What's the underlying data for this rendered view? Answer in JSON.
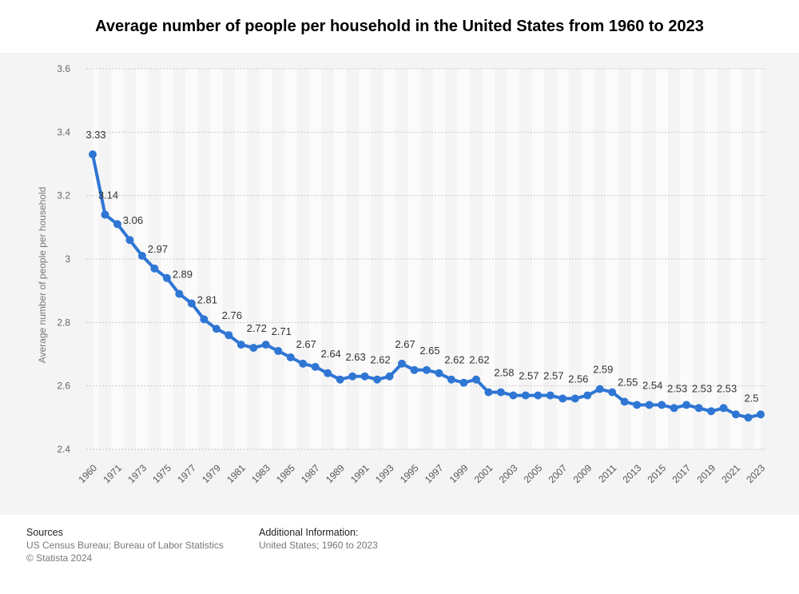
{
  "title": "Average number of people per household in the United States from 1960 to 2023",
  "sources": {
    "heading": "Sources",
    "line1": "US Census Bureau; Bureau of Labor Statistics",
    "line2": "© Statista 2024"
  },
  "additional_info": {
    "heading": "Additional Information:",
    "line1": "United States; 1960 to 2023"
  },
  "colors": {
    "line": "#2f76d4",
    "grid": "#c8c8c8",
    "panel": "#f4f4f4"
  },
  "chart_data": {
    "type": "line",
    "title": "Average number of people per household in the United States from 1960 to 2023",
    "xlabel": "",
    "ylabel": "Average number of people per household",
    "ylim": [
      2.4,
      3.6
    ],
    "yticks": [
      2.4,
      2.6,
      2.8,
      3,
      3.2,
      3.4,
      3.6
    ],
    "grid": true,
    "x": [
      "1960",
      "1970",
      "1971",
      "1972",
      "1973",
      "1974",
      "1975",
      "1976",
      "1977",
      "1978",
      "1979",
      "1980",
      "1981",
      "1982",
      "1983",
      "1984",
      "1985",
      "1986",
      "1987",
      "1988",
      "1989",
      "1990",
      "1991",
      "1992",
      "1993",
      "1994",
      "1995",
      "1996",
      "1997",
      "1998",
      "1999",
      "2000",
      "2001",
      "2002",
      "2003",
      "2004",
      "2005",
      "2006",
      "2007",
      "2008",
      "2009",
      "2010",
      "2011",
      "2012",
      "2013",
      "2014",
      "2015",
      "2016",
      "2017",
      "2018",
      "2019",
      "2020",
      "2021",
      "2022",
      "2023"
    ],
    "x_tick_labels": [
      "1960",
      "1971",
      "1973",
      "1975",
      "1977",
      "1979",
      "1981",
      "1983",
      "1985",
      "1987",
      "1989",
      "1991",
      "1993",
      "1995",
      "1997",
      "1999",
      "2001",
      "2003",
      "2005",
      "2007",
      "2009",
      "2011",
      "2013",
      "2015",
      "2017",
      "2019",
      "2021",
      "2023"
    ],
    "series": [
      {
        "values": [
          3.33,
          3.14,
          3.11,
          3.06,
          3.01,
          2.97,
          2.94,
          2.89,
          2.86,
          2.81,
          2.78,
          2.76,
          2.73,
          2.72,
          2.73,
          2.71,
          2.69,
          2.67,
          2.66,
          2.64,
          2.62,
          2.63,
          2.63,
          2.62,
          2.63,
          2.67,
          2.65,
          2.65,
          2.64,
          2.62,
          2.61,
          2.62,
          2.58,
          2.58,
          2.57,
          2.57,
          2.57,
          2.57,
          2.56,
          2.56,
          2.57,
          2.59,
          2.58,
          2.55,
          2.54,
          2.54,
          2.54,
          2.53,
          2.54,
          2.53,
          2.52,
          2.53,
          2.51,
          2.5,
          2.51
        ]
      }
    ],
    "data_labels": [
      {
        "x": "1960",
        "text": "3.33"
      },
      {
        "x": "1970",
        "text": "3.14"
      },
      {
        "x": "1972",
        "text": "3.06"
      },
      {
        "x": "1974",
        "text": "2.97"
      },
      {
        "x": "1976",
        "text": "2.89"
      },
      {
        "x": "1978",
        "text": "2.81"
      },
      {
        "x": "1980",
        "text": "2.76"
      },
      {
        "x": "1982",
        "text": "2.72"
      },
      {
        "x": "1984",
        "text": "2.71"
      },
      {
        "x": "1986",
        "text": "2.67"
      },
      {
        "x": "1988",
        "text": "2.64"
      },
      {
        "x": "1990",
        "text": "2.63"
      },
      {
        "x": "1992",
        "text": "2.62"
      },
      {
        "x": "1994",
        "text": "2.67"
      },
      {
        "x": "1996",
        "text": "2.65"
      },
      {
        "x": "1998",
        "text": "2.62"
      },
      {
        "x": "2000",
        "text": "2.62"
      },
      {
        "x": "2002",
        "text": "2.58"
      },
      {
        "x": "2004",
        "text": "2.57"
      },
      {
        "x": "2006",
        "text": "2.57"
      },
      {
        "x": "2008",
        "text": "2.56"
      },
      {
        "x": "2010",
        "text": "2.59"
      },
      {
        "x": "2012",
        "text": "2.55"
      },
      {
        "x": "2014",
        "text": "2.54"
      },
      {
        "x": "2016",
        "text": "2.53"
      },
      {
        "x": "2018",
        "text": "2.53"
      },
      {
        "x": "2020",
        "text": "2.53"
      },
      {
        "x": "2022",
        "text": "2.5"
      }
    ]
  }
}
